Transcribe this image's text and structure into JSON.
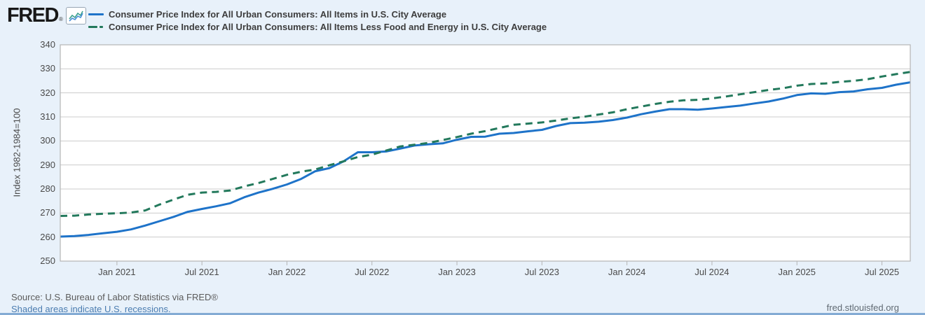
{
  "header": {
    "logo_text": "FRED",
    "logo_registered": "®"
  },
  "footer": {
    "source": "Source: U.S. Bureau of Labor Statistics via FRED®",
    "recession_note": "Shaded areas indicate U.S. recessions.",
    "site": "fred.stlouisfed.org"
  },
  "colors": {
    "background": "#e8f1fa",
    "plot_background": "#ffffff",
    "gridline": "#cccccc",
    "plot_border": "#b5b5b5",
    "series_all_items": "#1e73c9",
    "series_core": "#23795c",
    "link": "#4a7cb0",
    "tick_text": "#4a4a4a"
  },
  "chart_data": {
    "type": "line",
    "title": "",
    "xlabel": "",
    "ylabel": "Index 1982-1984=100",
    "ylim": [
      250,
      340
    ],
    "grid": "horizontal",
    "legend_position": "top-left",
    "y_ticks": [
      250,
      260,
      270,
      280,
      290,
      300,
      310,
      320,
      330,
      340
    ],
    "x_ticks": [
      {
        "label": "Jan 2021",
        "month_index": 4
      },
      {
        "label": "Jul 2021",
        "month_index": 10
      },
      {
        "label": "Jan 2022",
        "month_index": 16
      },
      {
        "label": "Jul 2022",
        "month_index": 22
      },
      {
        "label": "Jan 2023",
        "month_index": 28
      },
      {
        "label": "Jul 2023",
        "month_index": 34
      },
      {
        "label": "Jan 2024",
        "month_index": 40
      },
      {
        "label": "Jul 2024",
        "month_index": 46
      },
      {
        "label": "Jan 2025",
        "month_index": 52
      },
      {
        "label": "Jul 2025",
        "month_index": 58
      }
    ],
    "months": [
      "2020-09",
      "2020-10",
      "2020-11",
      "2020-12",
      "2021-01",
      "2021-02",
      "2021-03",
      "2021-04",
      "2021-05",
      "2021-06",
      "2021-07",
      "2021-08",
      "2021-09",
      "2021-10",
      "2021-11",
      "2021-12",
      "2022-01",
      "2022-02",
      "2022-03",
      "2022-04",
      "2022-05",
      "2022-06",
      "2022-07",
      "2022-08",
      "2022-09",
      "2022-10",
      "2022-11",
      "2022-12",
      "2023-01",
      "2023-02",
      "2023-03",
      "2023-04",
      "2023-05",
      "2023-06",
      "2023-07",
      "2023-08",
      "2023-09",
      "2023-10",
      "2023-11",
      "2023-12",
      "2024-01",
      "2024-02",
      "2024-03",
      "2024-04",
      "2024-05",
      "2024-06",
      "2024-07",
      "2024-08",
      "2024-09",
      "2024-10",
      "2024-11",
      "2024-12",
      "2025-01",
      "2025-02",
      "2025-03",
      "2025-04",
      "2025-05",
      "2025-06",
      "2025-07",
      "2025-08",
      "2025-09"
    ],
    "series": [
      {
        "id": "all-items",
        "name": "Consumer Price Index for All Urban Consumers: All Items in U.S. City Average",
        "color": "#1e73c9",
        "line_style": "solid",
        "dash": "",
        "values": [
          260.2,
          260.4,
          260.9,
          261.6,
          262.2,
          263.2,
          264.8,
          266.6,
          268.4,
          270.5,
          271.7,
          272.8,
          274.1,
          276.6,
          278.5,
          280.1,
          281.9,
          284.2,
          287.4,
          288.7,
          291.5,
          295.3,
          295.3,
          295.6,
          296.8,
          298.1,
          298.6,
          299.0,
          300.5,
          301.7,
          301.8,
          303.0,
          303.3,
          304.0,
          304.6,
          306.2,
          307.4,
          307.6,
          308.0,
          308.7,
          309.7,
          311.1,
          312.2,
          313.2,
          313.2,
          313.0,
          313.5,
          314.1,
          314.7,
          315.6,
          316.4,
          317.6,
          319.1,
          319.8,
          319.6,
          320.3,
          320.6,
          321.5,
          322.1,
          323.4,
          324.4
        ]
      },
      {
        "id": "core",
        "name": "Consumer Price Index for All Urban Consumers: All Items Less Food and Energy in U.S. City Average",
        "color": "#23795c",
        "line_style": "dashed",
        "dash": "10,7",
        "values": [
          268.8,
          268.9,
          269.4,
          269.7,
          269.9,
          270.2,
          271.1,
          273.5,
          275.6,
          277.6,
          278.5,
          278.8,
          279.4,
          281.1,
          282.5,
          284.2,
          285.9,
          287.2,
          288.1,
          289.9,
          291.5,
          293.3,
          294.3,
          296.0,
          297.7,
          298.4,
          299.2,
          300.4,
          301.6,
          303.0,
          304.1,
          305.4,
          306.7,
          307.2,
          307.7,
          308.5,
          309.4,
          310.1,
          311.0,
          311.9,
          313.2,
          314.3,
          315.4,
          316.3,
          316.9,
          317.1,
          317.7,
          318.5,
          319.4,
          320.3,
          321.2,
          321.9,
          323.0,
          323.7,
          323.9,
          324.6,
          325.0,
          325.7,
          326.8,
          327.8,
          328.7
        ]
      }
    ]
  }
}
